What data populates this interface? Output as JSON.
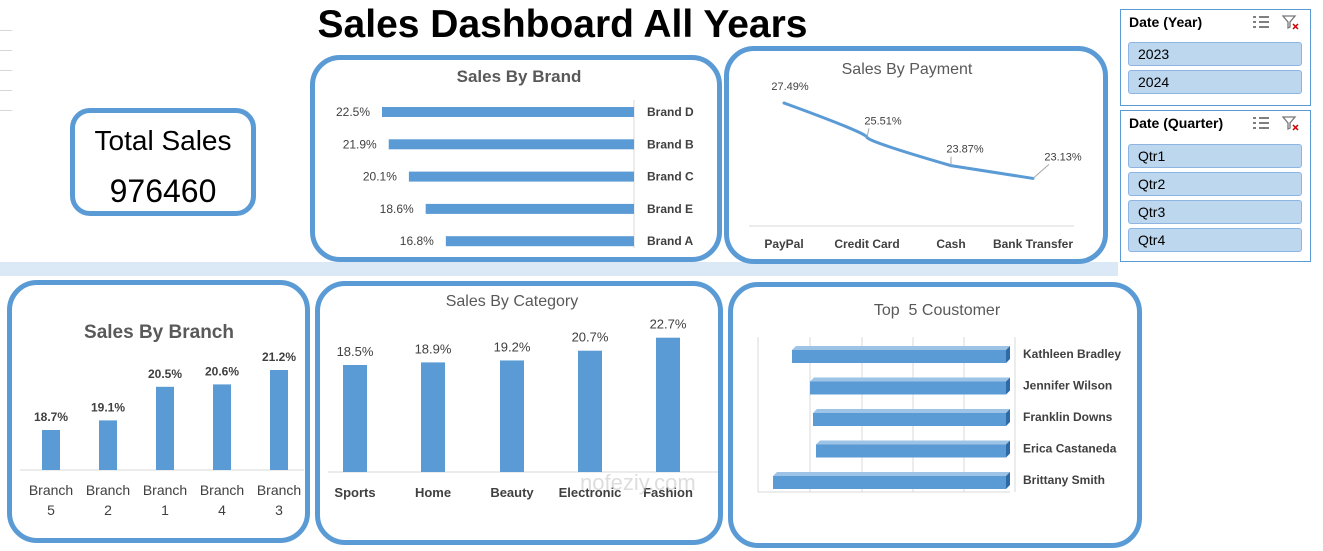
{
  "dashboard": {
    "title": "Sales Dashboard All Years"
  },
  "total_sales": {
    "label": "Total Sales",
    "value": "976460"
  },
  "slicers": [
    {
      "title": "Date (Year)",
      "items": [
        "2023",
        "2024"
      ]
    },
    {
      "title": "Date (Quarter)",
      "items": [
        "Qtr1",
        "Qtr2",
        "Qtr3",
        "Qtr4"
      ]
    }
  ],
  "watermark": {
    "text": "nofeziy.com"
  },
  "chart_data": [
    {
      "id": "brand",
      "type": "bar",
      "orientation": "horizontal",
      "title": "Sales By Brand",
      "categories": [
        "Brand D",
        "Brand B",
        "Brand C",
        "Brand E",
        "Brand A"
      ],
      "values": [
        22.5,
        21.9,
        20.1,
        18.6,
        16.8
      ],
      "labels": [
        "22.5%",
        "21.9%",
        "20.1%",
        "18.6%",
        "16.8%"
      ],
      "color": "#5b9bd5"
    },
    {
      "id": "payment",
      "type": "line",
      "title": "Sales By Payment",
      "categories": [
        "PayPal",
        "Credit Card",
        "Cash",
        "Bank Transfer"
      ],
      "values": [
        27.49,
        25.51,
        23.87,
        23.13
      ],
      "labels": [
        "27.49%",
        "25.51%",
        "23.87%",
        "23.13%"
      ],
      "color": "#5b9bd5"
    },
    {
      "id": "branch",
      "type": "bar",
      "title": "Sales By Branch",
      "categories": [
        "Branch 5",
        "Branch 2",
        "Branch 1",
        "Branch 4",
        "Branch 3"
      ],
      "values": [
        18.7,
        19.1,
        20.5,
        20.6,
        21.2
      ],
      "labels": [
        "18.7%",
        "19.1%",
        "20.5%",
        "20.6%",
        "21.2%"
      ],
      "color": "#5b9bd5"
    },
    {
      "id": "category",
      "type": "bar",
      "title": "Sales By Category",
      "categories": [
        "Sports",
        "Home",
        "Beauty",
        "Electronic",
        "Fashion"
      ],
      "values": [
        18.5,
        18.9,
        19.2,
        20.7,
        22.7
      ],
      "labels": [
        "18.5%",
        "18.9%",
        "19.2%",
        "20.7%",
        "22.7%"
      ],
      "color": "#5b9bd5"
    },
    {
      "id": "customer",
      "type": "bar",
      "orientation": "horizontal",
      "title": "Top  5 Coustomer",
      "categories": [
        "Kathleen Bradley",
        "Jennifer Wilson",
        "Franklin Downs",
        "Erica Castaneda",
        "Brittany Smith"
      ],
      "values": [
        21.4,
        19.6,
        19.3,
        19.0,
        23.3
      ],
      "color": "#5b9bd5"
    }
  ]
}
